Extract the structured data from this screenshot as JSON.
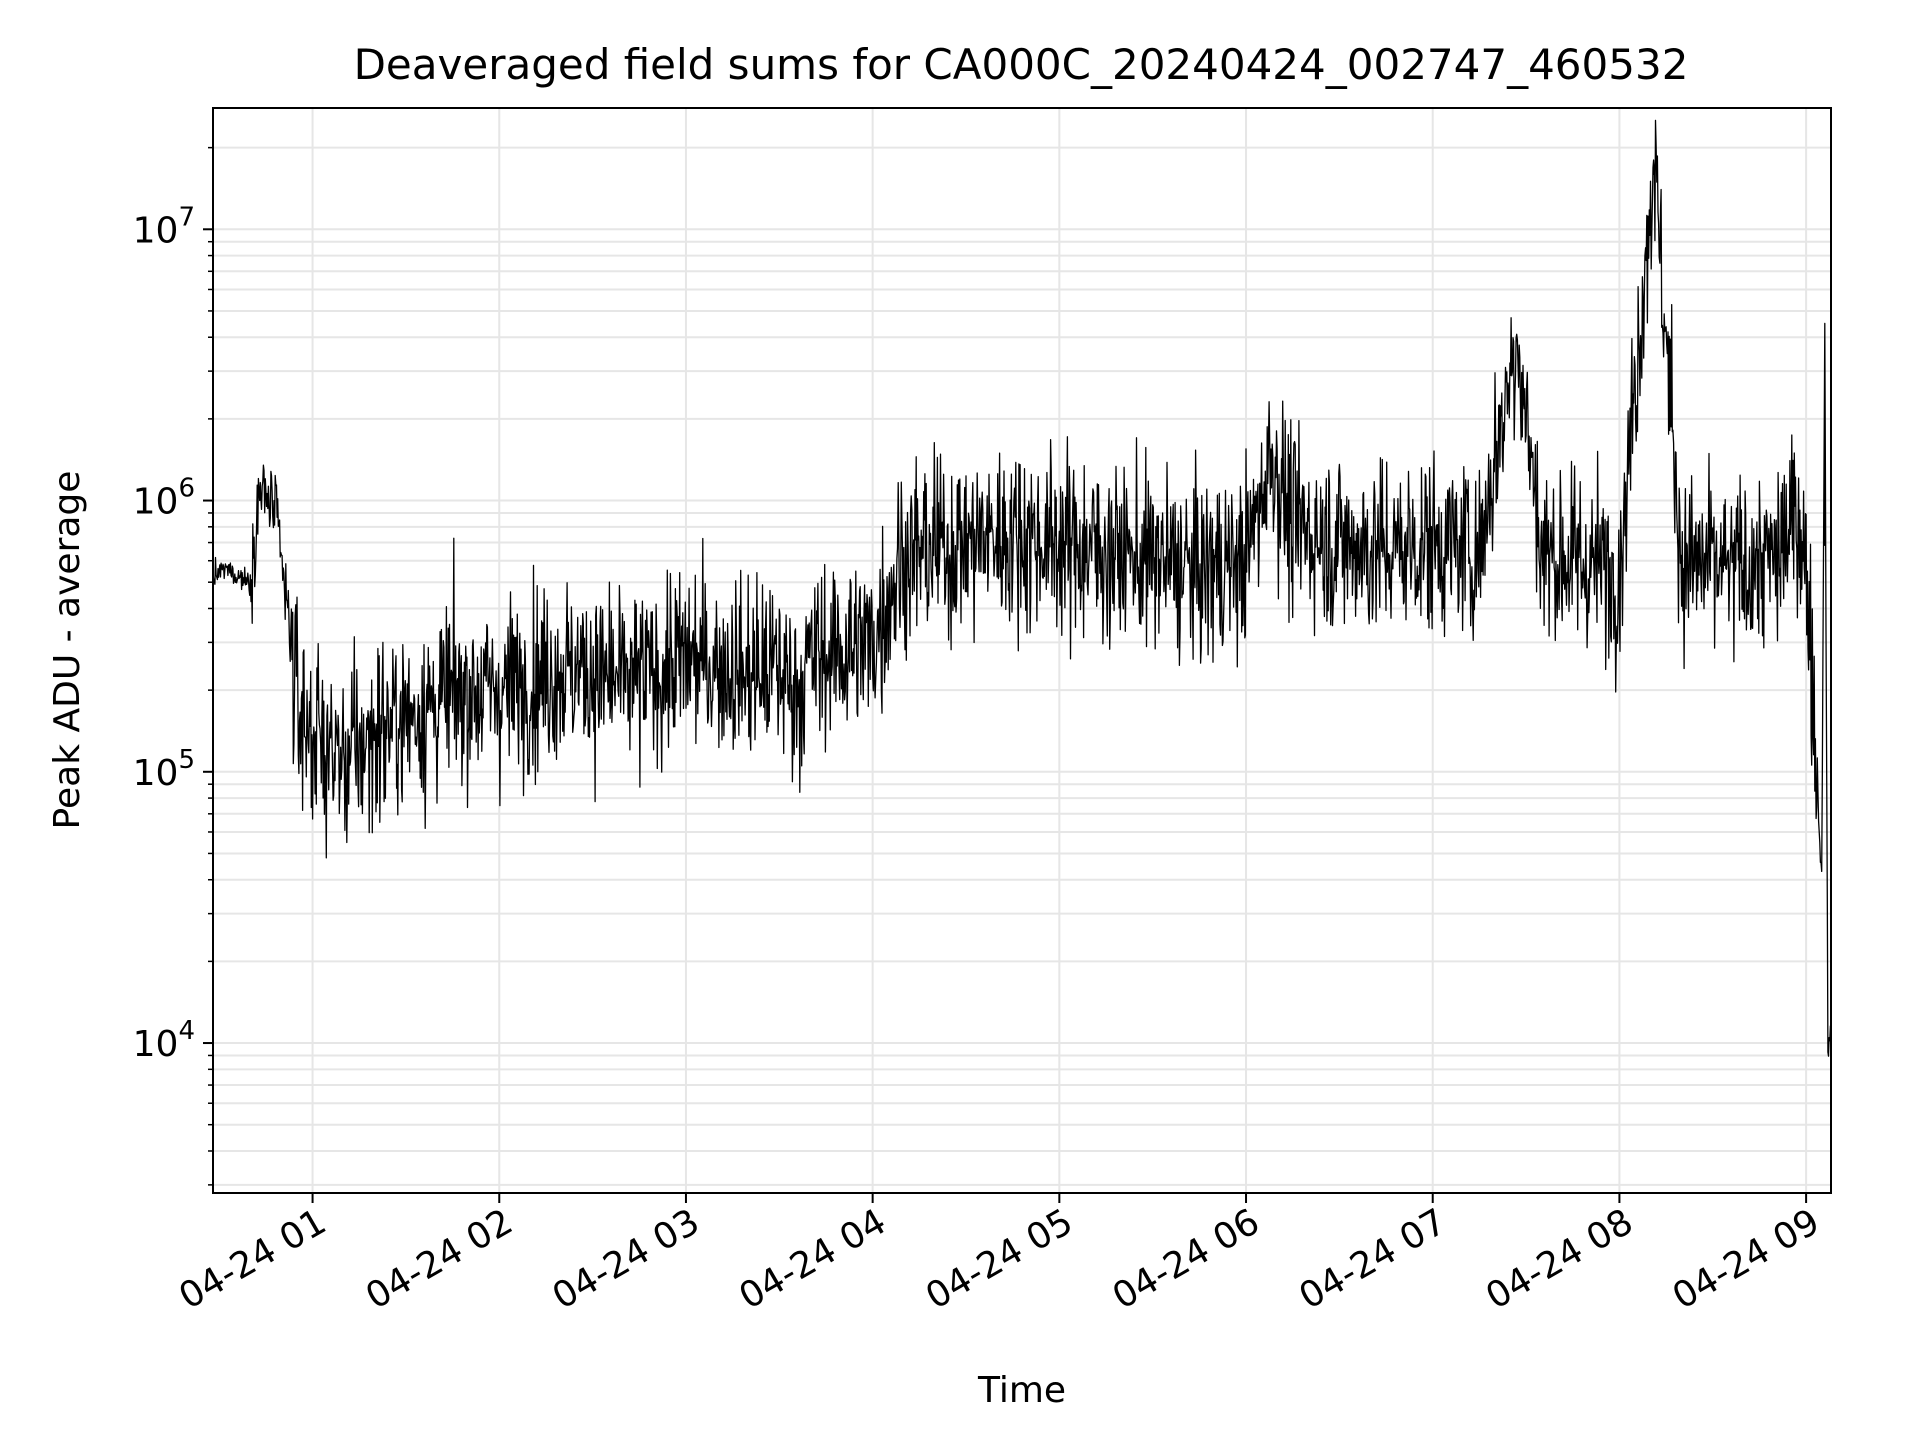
{
  "chart_data": {
    "type": "line",
    "title": "Deaveraged field sums for CA000C_20240424_002747_460532",
    "xlabel": "Time",
    "ylabel": "Peak ADU - average",
    "yscale": "log",
    "ylim": [
      2800,
      28000000
    ],
    "xlim": [
      "2024-04-24 00:28",
      "2024-04-24 09:08"
    ],
    "grid": true,
    "line_color": "#000000",
    "x_ticks": [
      {
        "time": "2024-04-24 01:00",
        "label": "04-24 01"
      },
      {
        "time": "2024-04-24 02:00",
        "label": "04-24 02"
      },
      {
        "time": "2024-04-24 03:00",
        "label": "04-24 03"
      },
      {
        "time": "2024-04-24 04:00",
        "label": "04-24 04"
      },
      {
        "time": "2024-04-24 05:00",
        "label": "04-24 05"
      },
      {
        "time": "2024-04-24 06:00",
        "label": "04-24 06"
      },
      {
        "time": "2024-04-24 07:00",
        "label": "04-24 07"
      },
      {
        "time": "2024-04-24 08:00",
        "label": "04-24 08"
      },
      {
        "time": "2024-04-24 09:00",
        "label": "04-24 09"
      }
    ],
    "y_ticks": [
      {
        "value": 10000,
        "base": "10",
        "exp": "4"
      },
      {
        "value": 100000,
        "base": "10",
        "exp": "5"
      },
      {
        "value": 1000000,
        "base": "10",
        "exp": "6"
      },
      {
        "value": 10000000,
        "base": "10",
        "exp": "7"
      }
    ],
    "series": [
      {
        "x": [
          "2024-04-24 00:28",
          "2024-04-24 00:32",
          "2024-04-24 00:36",
          "2024-04-24 00:40",
          "2024-04-24 00:43",
          "2024-04-24 00:46",
          "2024-04-24 00:48",
          "2024-04-24 00:50",
          "2024-04-24 00:53",
          "2024-04-24 00:55",
          "2024-04-24 00:58",
          "2024-04-24 01:02",
          "2024-04-24 01:06",
          "2024-04-24 01:10",
          "2024-04-24 01:15",
          "2024-04-24 01:20",
          "2024-04-24 01:30",
          "2024-04-24 01:40",
          "2024-04-24 01:50",
          "2024-04-24 02:00",
          "2024-04-24 02:10",
          "2024-04-24 02:20",
          "2024-04-24 02:30",
          "2024-04-24 02:40",
          "2024-04-24 02:50",
          "2024-04-24 03:00",
          "2024-04-24 03:10",
          "2024-04-24 03:20",
          "2024-04-24 03:30",
          "2024-04-24 03:36",
          "2024-04-24 03:40",
          "2024-04-24 03:50",
          "2024-04-24 04:00",
          "2024-04-24 04:09",
          "2024-04-24 04:15",
          "2024-04-24 04:30",
          "2024-04-24 04:45",
          "2024-04-24 05:00",
          "2024-04-24 05:15",
          "2024-04-24 05:30",
          "2024-04-24 05:45",
          "2024-04-24 06:00",
          "2024-04-24 06:08",
          "2024-04-24 06:15",
          "2024-04-24 06:30",
          "2024-04-24 06:45",
          "2024-04-24 07:00",
          "2024-04-24 07:15",
          "2024-04-24 07:27",
          "2024-04-24 07:35",
          "2024-04-24 07:45",
          "2024-04-24 08:00",
          "2024-04-24 08:11",
          "2024-04-24 08:20",
          "2024-04-24 08:35",
          "2024-04-24 08:50",
          "2024-04-24 08:58",
          "2024-04-24 09:01",
          "2024-04-24 09:03",
          "2024-04-24 09:05",
          "2024-04-24 09:06",
          "2024-04-24 09:07",
          "2024-04-24 09:08"
        ],
        "y": [
          520000,
          560000,
          530000,
          500000,
          1100000,
          1000000,
          900000,
          600000,
          300000,
          180000,
          150000,
          130000,
          120000,
          110000,
          120000,
          140000,
          160000,
          180000,
          200000,
          200000,
          220000,
          240000,
          230000,
          210000,
          230000,
          260000,
          250000,
          230000,
          240000,
          200000,
          260000,
          280000,
          300000,
          600000,
          650000,
          700000,
          750000,
          700000,
          650000,
          600000,
          550000,
          600000,
          1500000,
          800000,
          700000,
          650000,
          700000,
          650000,
          4100000,
          650000,
          600000,
          550000,
          18000000,
          600000,
          550000,
          600000,
          900000,
          400000,
          120000,
          40000,
          4500000,
          9000,
          12000
        ]
      }
    ]
  }
}
